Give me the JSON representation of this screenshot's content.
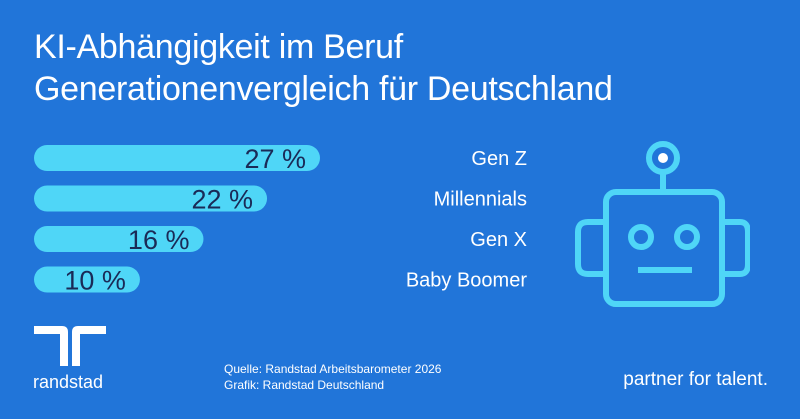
{
  "header": {
    "title_line1": "KI-Abhängigkeit im Beruf",
    "title_line2": "Generationenvergleich für Deutschland"
  },
  "chart_data": {
    "type": "bar",
    "orientation": "horizontal",
    "categories": [
      "Gen Z",
      "Millennials",
      "Gen X",
      "Baby Boomer"
    ],
    "values": [
      27,
      22,
      16,
      10
    ],
    "value_labels": [
      "27 %",
      "22 %",
      "16 %",
      "10 %"
    ],
    "unit": "%",
    "xlim": [
      0,
      27
    ],
    "grid": false,
    "bar_color": "#4fd6f7",
    "label_color": "#1a2a57"
  },
  "footer": {
    "brand": "randstad",
    "source_line1": "Quelle: Randstad Arbeitsbarometer 2026",
    "source_line2": "Grafik: Randstad Deutschland",
    "tagline": "partner for talent."
  },
  "colors": {
    "background": "#2175d9",
    "accent": "#4fd6f7"
  },
  "icons": {
    "robot": "robot-icon",
    "logo": "randstad-logo-icon"
  }
}
